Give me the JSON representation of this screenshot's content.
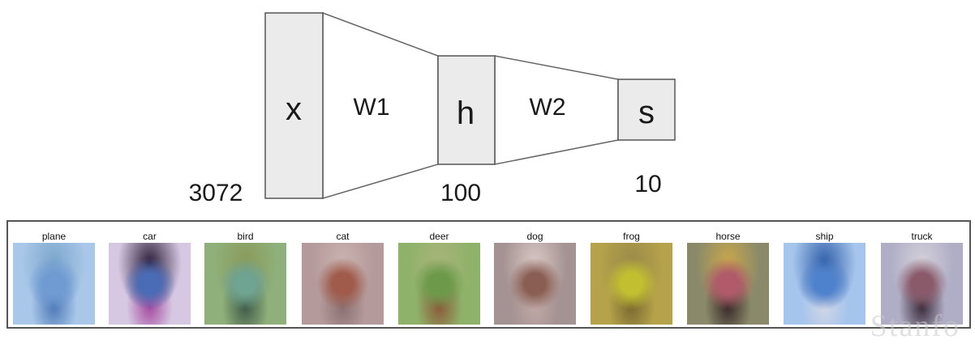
{
  "network": {
    "nodes": [
      {
        "label": "x",
        "size": "3072"
      },
      {
        "label": "h",
        "size": "100"
      },
      {
        "label": "s",
        "size": "10"
      }
    ],
    "edges": [
      {
        "label": "W1"
      },
      {
        "label": "W2"
      }
    ]
  },
  "templates": {
    "classes": [
      {
        "label": "plane",
        "colors": [
          "#a9c7e8",
          "#6f9bd2",
          "#4e79b8",
          "#7aa5cc"
        ]
      },
      {
        "label": "car",
        "colors": [
          "#d6c8e2",
          "#4a6bb5",
          "#a44aa0",
          "#2c1e3a"
        ]
      },
      {
        "label": "bird",
        "colors": [
          "#8fb07a",
          "#6fa392",
          "#3e5a48",
          "#8a9a5a"
        ]
      },
      {
        "label": "cat",
        "colors": [
          "#b49a9a",
          "#a05b4a",
          "#8a7072",
          "#c9b3b0"
        ]
      },
      {
        "label": "deer",
        "colors": [
          "#8fb26a",
          "#6c9a4a",
          "#8a5a3a",
          "#a9b47a"
        ]
      },
      {
        "label": "dog",
        "colors": [
          "#a59292",
          "#8a5e52",
          "#c0a9a6",
          "#d9c9c6"
        ]
      },
      {
        "label": "frog",
        "colors": [
          "#b5a24a",
          "#c2c030",
          "#7a6a30",
          "#9a8a4a"
        ]
      },
      {
        "label": "horse",
        "colors": [
          "#8a8a6a",
          "#b05a6a",
          "#3a2a2a",
          "#c9a74a"
        ]
      },
      {
        "label": "ship",
        "colors": [
          "#a6c5ec",
          "#4f82cc",
          "#d2d6e6",
          "#2f5ea8"
        ]
      },
      {
        "label": "truck",
        "colors": [
          "#b0aec6",
          "#8a5a6a",
          "#3a2a3a",
          "#d4d0da"
        ]
      }
    ]
  },
  "watermark": "Stanfo"
}
